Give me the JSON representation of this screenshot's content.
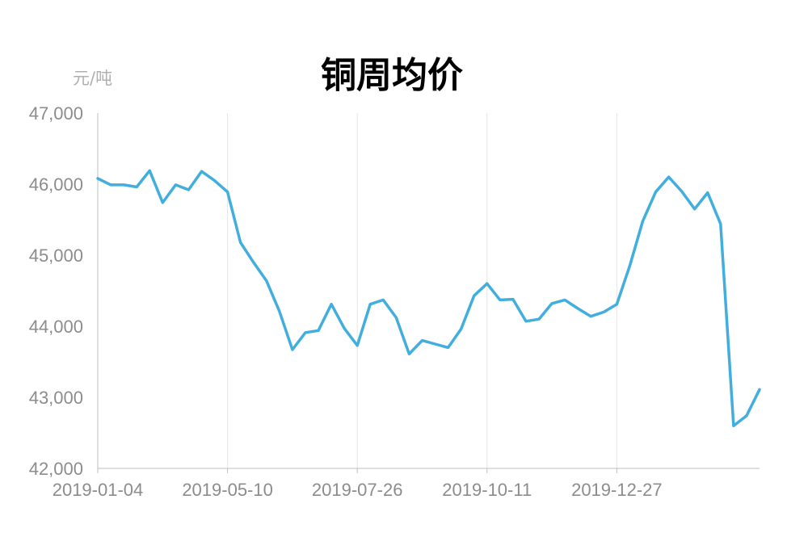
{
  "chart_data": {
    "type": "line",
    "title": "铜周均价",
    "y_unit": "元/吨",
    "ylim": [
      42000,
      47000
    ],
    "y_ticks": [
      "42,000",
      "43,000",
      "44,000",
      "45,000",
      "46,000",
      "47,000"
    ],
    "x_ticks": [
      "2019-01-04",
      "2019-05-10",
      "2019-07-26",
      "2019-10-11",
      "2019-12-27"
    ],
    "grid": "vertical",
    "legend": "none",
    "series": [
      {
        "color": "#41aede",
        "values": [
          46080,
          45990,
          45990,
          45960,
          46190,
          45740,
          45990,
          45920,
          46180,
          46050,
          45890,
          45180,
          44900,
          44640,
          44210,
          43670,
          43910,
          43940,
          44310,
          43970,
          43730,
          44310,
          44370,
          44120,
          43610,
          43800,
          43750,
          43700,
          43960,
          44430,
          44600,
          44370,
          44380,
          44070,
          44100,
          44320,
          44370,
          44250,
          44140,
          44200,
          44310,
          44850,
          45480,
          45890,
          46100,
          45900,
          45650,
          45880,
          45440,
          42600,
          42740,
          43110
        ]
      }
    ]
  }
}
